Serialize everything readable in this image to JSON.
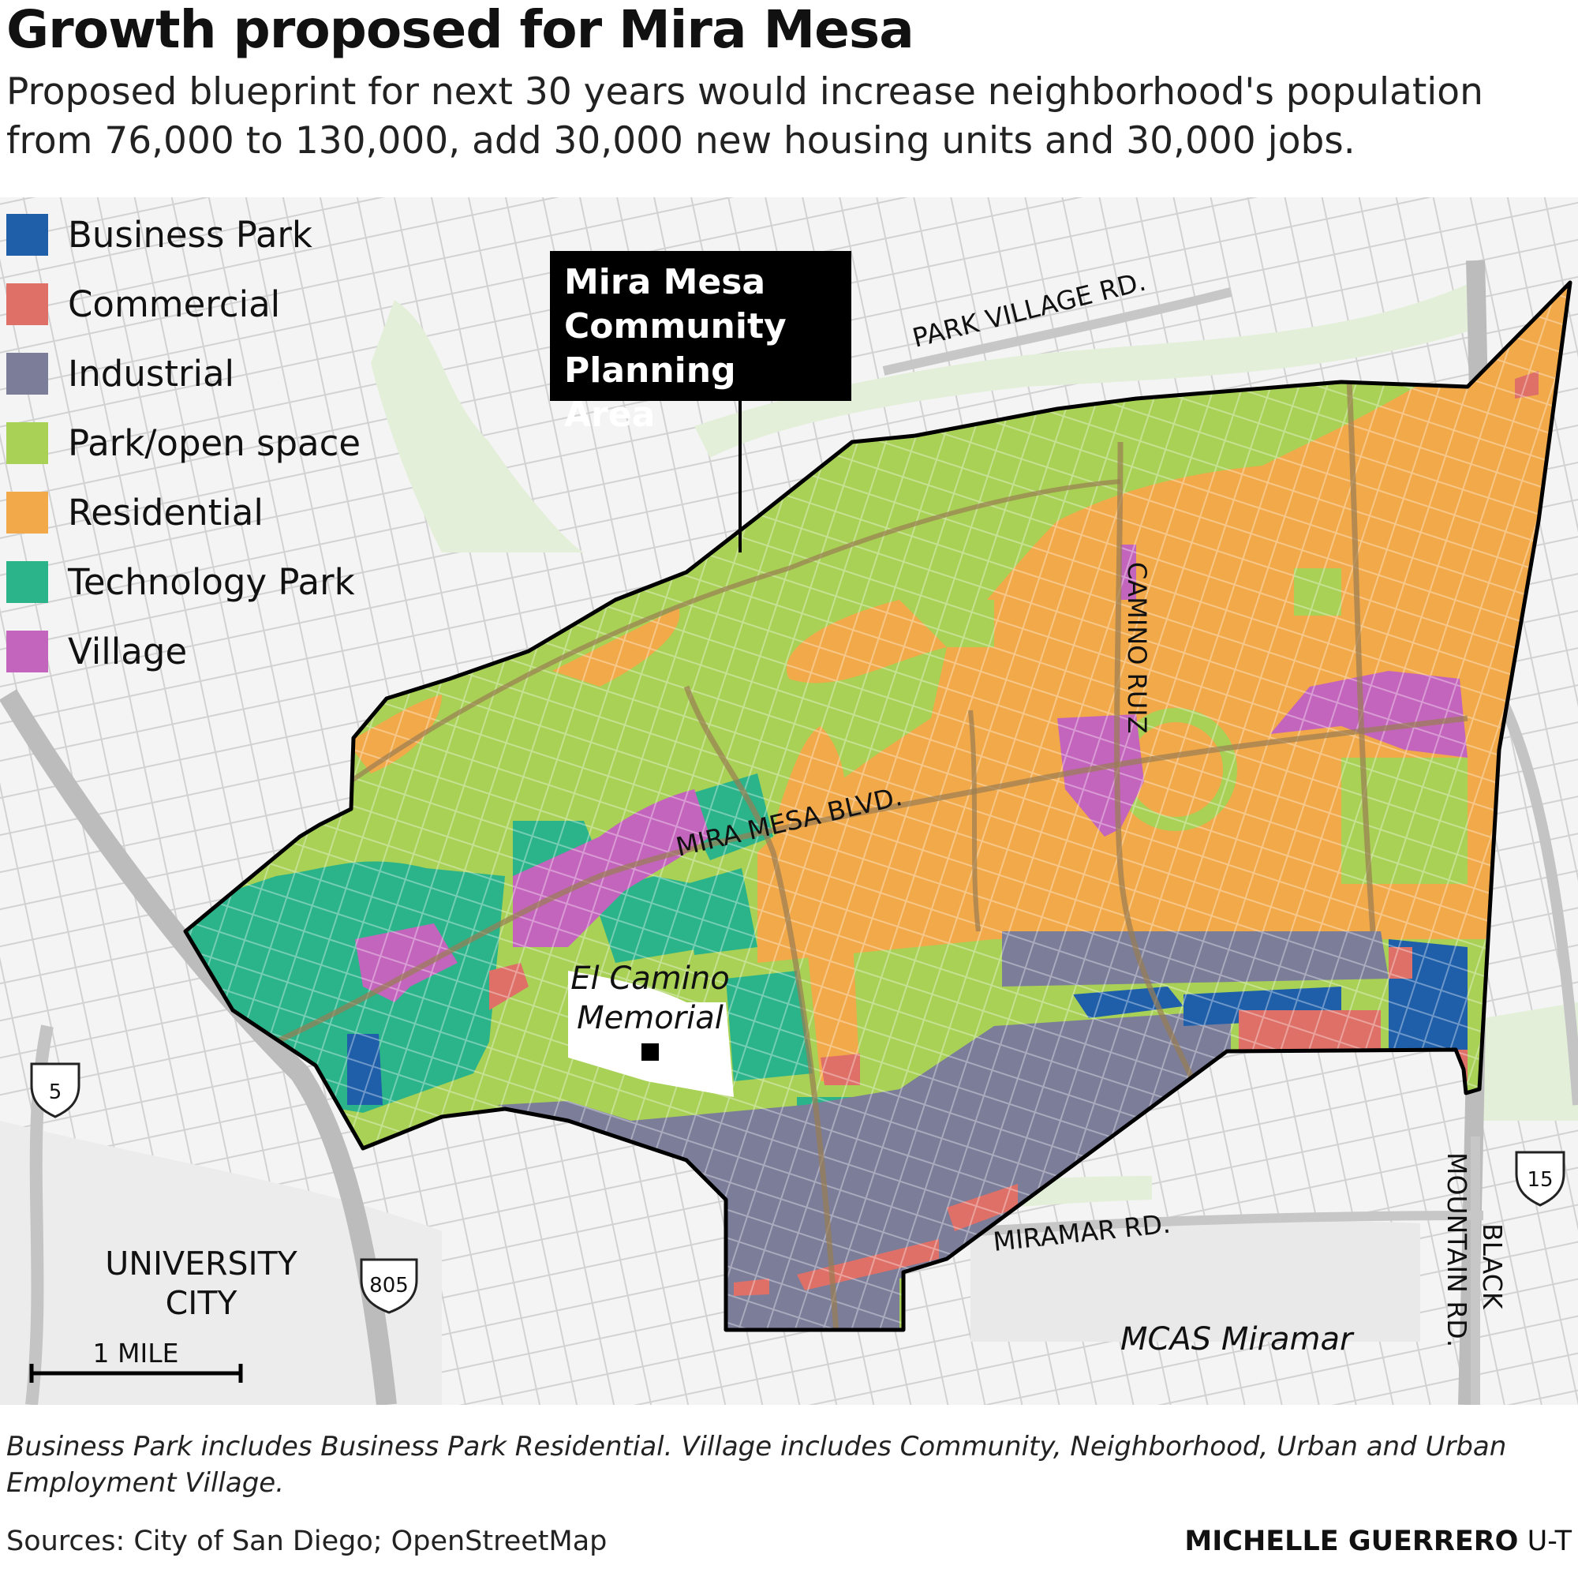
{
  "title": "Growth proposed for Mira Mesa",
  "subtitle": "Proposed blueprint for next 30 years would increase neighborhood's population from 76,000 to 130,000, add 30,000 new housing units and 30,000 jobs.",
  "legend": [
    {
      "label": "Business Park",
      "color": "#1f5faa"
    },
    {
      "label": "Commercial",
      "color": "#df7068"
    },
    {
      "label": "Industrial",
      "color": "#7b7d99"
    },
    {
      "label": "Park/open space",
      "color": "#a8d156"
    },
    {
      "label": "Residential",
      "color": "#f2a94a"
    },
    {
      "label": "Technology Park",
      "color": "#2bb38a"
    },
    {
      "label": "Village",
      "color": "#c465bd"
    }
  ],
  "callout": {
    "lines": [
      "Mira Mesa",
      "Community",
      "Planning Area"
    ]
  },
  "map_labels": {
    "park_village_rd": "PARK VILLAGE RD.",
    "camino_ruiz": "CAMINO RUIZ",
    "mira_mesa_blvd": "MIRA MESA BLVD.",
    "el_camino_1": "El Camino",
    "el_camino_2": "Memorial",
    "miramar_rd": "MIRAMAR RD.",
    "black_mountain_1": "BLACK",
    "black_mountain_2": "MOUNTAIN RD.",
    "mcas": "MCAS Miramar",
    "university_1": "UNIVERSITY",
    "university_2": "CITY",
    "scale": "1 MILE",
    "i5": "5",
    "i805": "805",
    "i15": "15"
  },
  "footnote": "Business Park includes Business Park Residential. Village includes Community, Neighborhood, Urban and Urban Employment Village.",
  "sources": "Sources: City of San Diego; OpenStreetMap",
  "credit": {
    "name": "MICHELLE GUERRERO",
    "org": "U-T"
  }
}
